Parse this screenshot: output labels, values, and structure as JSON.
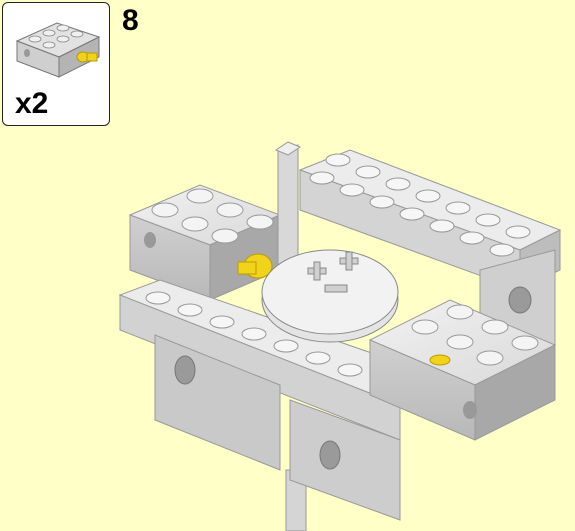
{
  "step": {
    "number": "8"
  },
  "parts_callout": {
    "quantity": "x2",
    "part_icon": "brick-2x3-with-pin-icon"
  },
  "model": {
    "icon": "lego-assembly-icon"
  }
}
